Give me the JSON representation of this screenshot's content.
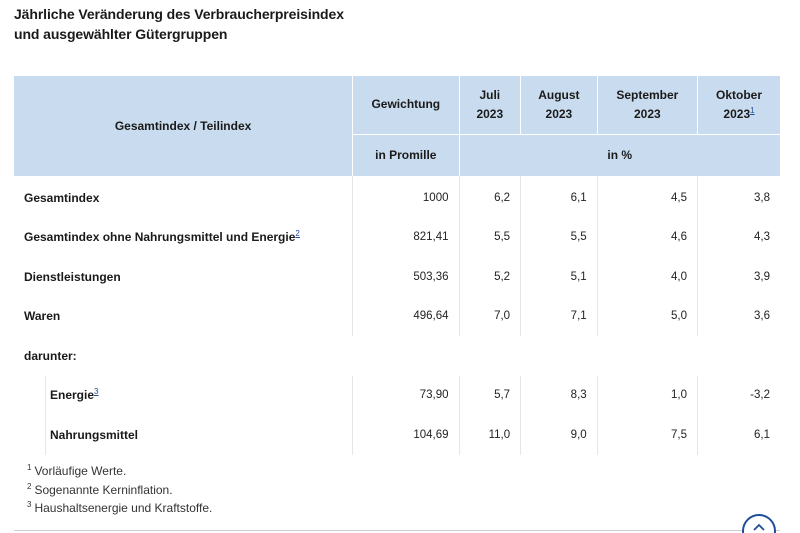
{
  "title": {
    "line1": "Jährliche Veränderung des Verbraucherpreisindex",
    "line2": "und ausgewählter Gütergruppen"
  },
  "table": {
    "header": {
      "index_label": "Gesamtindex / Teilindex",
      "weight_label": "Gewichtung",
      "weight_unit": "in Promille",
      "change_unit": "in %",
      "months": [
        {
          "month": "Juli",
          "year": "2023",
          "footnote": ""
        },
        {
          "month": "August",
          "year": "2023",
          "footnote": ""
        },
        {
          "month": "September",
          "year": "2023",
          "footnote": ""
        },
        {
          "month": "Oktober",
          "year": "2023",
          "footnote": "1"
        }
      ]
    },
    "rows": [
      {
        "label": "Gesamtindex",
        "footnote": "",
        "weight": "1000",
        "values": [
          "6,2",
          "6,1",
          "4,5",
          "3,8"
        ]
      },
      {
        "label": "Gesamtindex ohne Nahrungsmittel und Energie",
        "footnote": "2",
        "weight": "821,41",
        "values": [
          "5,5",
          "5,5",
          "4,6",
          "4,3"
        ]
      },
      {
        "label": "Dienstleistungen",
        "footnote": "",
        "weight": "503,36",
        "values": [
          "5,2",
          "5,1",
          "4,0",
          "3,9"
        ]
      },
      {
        "label": "Waren",
        "footnote": "",
        "weight": "496,64",
        "values": [
          "7,0",
          "7,1",
          "5,0",
          "3,6"
        ]
      }
    ],
    "subheading": "darunter:",
    "subrows": [
      {
        "label": "Energie",
        "footnote": "3",
        "weight": "73,90",
        "values": [
          "5,7",
          "8,3",
          "1,0",
          "-3,2"
        ]
      },
      {
        "label": "Nahrungsmittel",
        "footnote": "",
        "weight": "104,69",
        "values": [
          "11,0",
          "9,0",
          "7,5",
          "6,1"
        ]
      }
    ]
  },
  "footnotes": [
    {
      "num": "1",
      "text": "Vorläufige Werte."
    },
    {
      "num": "2",
      "text": "Sogenannte Kerninflation."
    },
    {
      "num": "3",
      "text": "Haushaltsenergie und Kraftstoffe."
    }
  ],
  "scroll_top_button": {
    "icon": "chevron-up-icon",
    "color": "#1f4e9a"
  },
  "colors": {
    "header_bg": "#c9dcef",
    "link": "#1f4e9a"
  }
}
